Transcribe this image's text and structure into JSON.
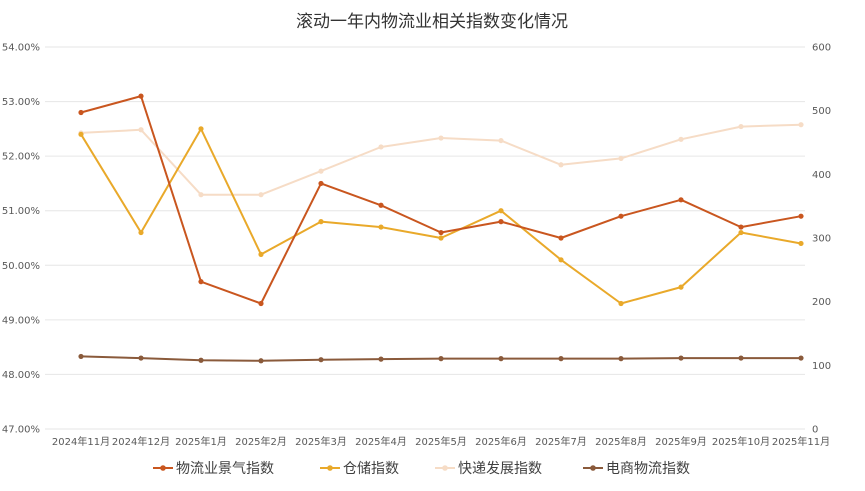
{
  "chart_data": {
    "type": "line",
    "title": "滚动一年内物流业相关指数变化情况",
    "categories": [
      "2024年11月",
      "2024年12月",
      "2025年1月",
      "2025年2月",
      "2025年3月",
      "2025年4月",
      "2025年5月",
      "2025年6月",
      "2025年7月",
      "2025年8月",
      "2025年9月",
      "2025年10月",
      "2025年11月"
    ],
    "y_left": {
      "min": 47.0,
      "max": 54.0,
      "step": 1.0,
      "tick_labels": [
        "47.00%",
        "48.00%",
        "49.00%",
        "50.00%",
        "51.00%",
        "52.00%",
        "53.00%",
        "54.00%"
      ]
    },
    "y_right": {
      "min": 0,
      "max": 600,
      "step": 100,
      "tick_labels": [
        "0",
        "100",
        "200",
        "300",
        "400",
        "500",
        "600"
      ]
    },
    "grid": true,
    "legend_position": "bottom",
    "series": [
      {
        "name": "物流业景气指数",
        "axis": "left",
        "color": "#c9561f",
        "values": [
          52.8,
          53.1,
          49.7,
          49.3,
          51.5,
          51.1,
          50.6,
          50.8,
          50.5,
          50.9,
          51.2,
          50.7,
          50.9
        ]
      },
      {
        "name": "仓储指数",
        "axis": "left",
        "color": "#e9a92a",
        "values": [
          52.4,
          50.6,
          52.5,
          50.2,
          50.8,
          50.7,
          50.5,
          51.0,
          50.1,
          49.3,
          49.6,
          50.6,
          50.4
        ]
      },
      {
        "name": "快递发展指数",
        "axis": "right",
        "color": "#f6dcc6",
        "values": [
          465,
          470,
          368,
          368,
          405,
          443,
          457,
          453,
          415,
          425,
          455,
          475,
          478
        ]
      },
      {
        "name": "电商物流指数",
        "axis": "left",
        "color": "#8a5a3b",
        "values": [
          48.33,
          48.3,
          48.26,
          48.25,
          48.27,
          48.28,
          48.29,
          48.29,
          48.29,
          48.29,
          48.3,
          48.3,
          48.3
        ]
      }
    ]
  }
}
